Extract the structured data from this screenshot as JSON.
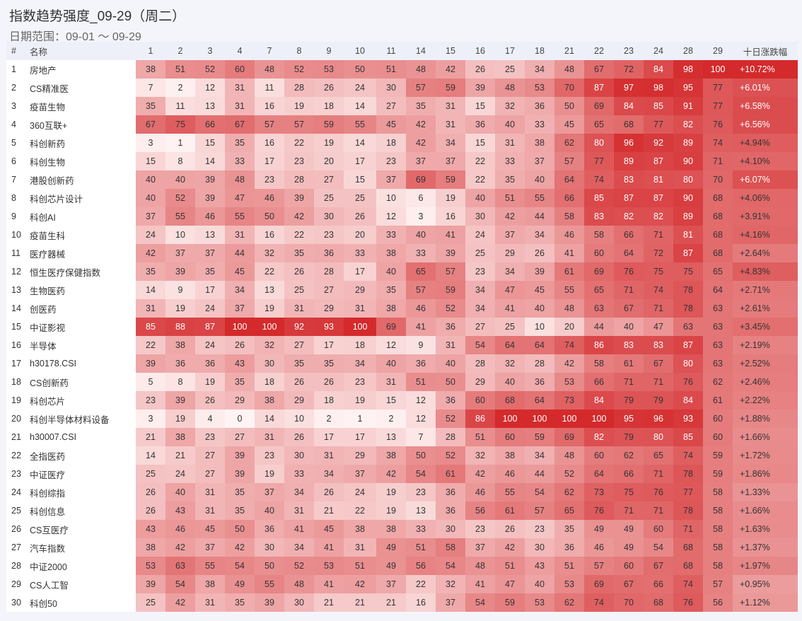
{
  "title": "指数趋势强度_09-29（周二）",
  "subtitle": "日期范围：09-01 ～ 09-29",
  "colors": {
    "heat_low": "#fff4f4",
    "heat_high": "#d42a2c",
    "header_bg": "#eef0f9",
    "page_bg": "#f4f5fb"
  },
  "chart_data": {
    "type": "heatmap",
    "columns": {
      "index": "#",
      "name": "名称",
      "change": "十日涨跌幅",
      "dates": [
        "1",
        "2",
        "3",
        "4",
        "7",
        "8",
        "9",
        "10",
        "11",
        "14",
        "15",
        "16",
        "17",
        "18",
        "21",
        "22",
        "23",
        "24",
        "28",
        "29"
      ]
    },
    "value_range": [
      0,
      100
    ],
    "rows": [
      {
        "idx": "1",
        "name": "房地产",
        "values": [
          38,
          51,
          52,
          60,
          48,
          52,
          53,
          50,
          51,
          48,
          42,
          26,
          25,
          34,
          48,
          67,
          72,
          84,
          98,
          100
        ],
        "change": "+10.72%"
      },
      {
        "idx": "2",
        "name": "CS精准医",
        "values": [
          7,
          2,
          12,
          31,
          11,
          28,
          26,
          24,
          30,
          57,
          59,
          39,
          48,
          53,
          70,
          87,
          97,
          98,
          95,
          77
        ],
        "change": "+6.01%"
      },
      {
        "idx": "3",
        "name": "疫苗生物",
        "values": [
          35,
          11,
          13,
          31,
          16,
          19,
          18,
          14,
          27,
          35,
          31,
          15,
          32,
          36,
          50,
          69,
          84,
          85,
          91,
          77
        ],
        "change": "+6.58%"
      },
      {
        "idx": "4",
        "name": "360互联+",
        "values": [
          67,
          75,
          66,
          67,
          57,
          57,
          59,
          55,
          45,
          42,
          31,
          36,
          40,
          33,
          45,
          65,
          68,
          77,
          82,
          76
        ],
        "change": "+6.56%"
      },
      {
        "idx": "5",
        "name": "科创新药",
        "values": [
          3,
          1,
          15,
          35,
          16,
          22,
          19,
          14,
          18,
          42,
          34,
          15,
          31,
          38,
          62,
          80,
          96,
          92,
          89,
          74
        ],
        "change": "+4.94%"
      },
      {
        "idx": "6",
        "name": "科创生物",
        "values": [
          15,
          8,
          14,
          33,
          17,
          23,
          20,
          17,
          23,
          37,
          37,
          22,
          33,
          37,
          57,
          77,
          89,
          87,
          90,
          71
        ],
        "change": "+4.10%"
      },
      {
        "idx": "7",
        "name": "港股创新药",
        "values": [
          40,
          40,
          39,
          48,
          23,
          28,
          27,
          15,
          37,
          69,
          59,
          22,
          35,
          40,
          64,
          74,
          83,
          81,
          80,
          70
        ],
        "change": "+6.07%"
      },
      {
        "idx": "8",
        "name": "科创芯片设计",
        "values": [
          40,
          52,
          39,
          47,
          46,
          39,
          25,
          25,
          10,
          6,
          19,
          40,
          51,
          55,
          66,
          85,
          87,
          87,
          90,
          68
        ],
        "change": "+4.06%"
      },
      {
        "idx": "9",
        "name": "科创AI",
        "values": [
          37,
          55,
          46,
          55,
          50,
          42,
          30,
          26,
          12,
          3,
          16,
          30,
          42,
          44,
          58,
          83,
          82,
          82,
          89,
          68
        ],
        "change": "+3.91%"
      },
      {
        "idx": "10",
        "name": "疫苗生科",
        "values": [
          24,
          10,
          13,
          31,
          16,
          22,
          23,
          20,
          33,
          40,
          41,
          24,
          37,
          34,
          46,
          58,
          66,
          71,
          81,
          68
        ],
        "change": "+4.16%"
      },
      {
        "idx": "11",
        "name": "医疗器械",
        "values": [
          42,
          37,
          37,
          44,
          32,
          35,
          36,
          33,
          38,
          33,
          39,
          25,
          29,
          26,
          41,
          60,
          64,
          72,
          87,
          68
        ],
        "change": "+2.64%"
      },
      {
        "idx": "12",
        "name": "恒生医疗保健指数",
        "values": [
          35,
          39,
          35,
          45,
          22,
          26,
          28,
          17,
          40,
          65,
          57,
          23,
          34,
          39,
          61,
          69,
          76,
          75,
          75,
          65
        ],
        "change": "+4.83%"
      },
      {
        "idx": "13",
        "name": "生物医药",
        "values": [
          14,
          9,
          17,
          34,
          13,
          25,
          27,
          29,
          35,
          57,
          59,
          34,
          47,
          45,
          55,
          65,
          71,
          74,
          78,
          64
        ],
        "change": "+2.71%"
      },
      {
        "idx": "14",
        "name": "创医药",
        "values": [
          31,
          19,
          24,
          37,
          19,
          31,
          29,
          31,
          38,
          46,
          52,
          34,
          41,
          40,
          48,
          63,
          67,
          71,
          78,
          63
        ],
        "change": "+2.61%"
      },
      {
        "idx": "15",
        "name": "中证影视",
        "values": [
          85,
          88,
          87,
          100,
          100,
          92,
          93,
          100,
          69,
          41,
          36,
          27,
          25,
          10,
          20,
          44,
          40,
          47,
          63,
          63
        ],
        "change": "+3.45%"
      },
      {
        "idx": "16",
        "name": "半导体",
        "values": [
          22,
          38,
          24,
          26,
          32,
          27,
          17,
          18,
          12,
          9,
          31,
          54,
          64,
          64,
          74,
          86,
          83,
          83,
          87,
          63
        ],
        "change": "+2.19%"
      },
      {
        "idx": "17",
        "name": "h30178.CSI",
        "values": [
          39,
          36,
          36,
          43,
          30,
          35,
          35,
          34,
          40,
          36,
          40,
          28,
          32,
          28,
          42,
          58,
          61,
          67,
          80,
          63
        ],
        "change": "+2.52%"
      },
      {
        "idx": "18",
        "name": "CS创新药",
        "values": [
          5,
          8,
          19,
          35,
          18,
          26,
          26,
          23,
          31,
          51,
          50,
          29,
          40,
          36,
          53,
          66,
          71,
          71,
          76,
          62
        ],
        "change": "+2.46%"
      },
      {
        "idx": "19",
        "name": "科创芯片",
        "values": [
          23,
          39,
          26,
          29,
          38,
          29,
          18,
          19,
          15,
          12,
          36,
          60,
          68,
          64,
          73,
          84,
          79,
          79,
          84,
          61
        ],
        "change": "+2.22%"
      },
      {
        "idx": "20",
        "name": "科创半导体材料设备",
        "values": [
          3,
          19,
          4,
          0,
          14,
          10,
          2,
          1,
          2,
          12,
          52,
          86,
          100,
          100,
          100,
          100,
          95,
          96,
          93,
          60
        ],
        "change": "+1.88%"
      },
      {
        "idx": "21",
        "name": "h30007.CSI",
        "values": [
          21,
          38,
          23,
          27,
          31,
          26,
          17,
          17,
          13,
          7,
          28,
          51,
          60,
          59,
          69,
          82,
          79,
          80,
          85,
          60
        ],
        "change": "+1.66%"
      },
      {
        "idx": "22",
        "name": "全指医药",
        "values": [
          14,
          21,
          27,
          39,
          23,
          30,
          31,
          29,
          38,
          50,
          52,
          32,
          38,
          34,
          48,
          60,
          62,
          65,
          74,
          59
        ],
        "change": "+1.72%"
      },
      {
        "idx": "23",
        "name": "中证医疗",
        "values": [
          25,
          24,
          27,
          39,
          19,
          33,
          34,
          37,
          42,
          54,
          61,
          42,
          46,
          44,
          52,
          64,
          66,
          71,
          78,
          59
        ],
        "change": "+1.86%"
      },
      {
        "idx": "24",
        "name": "科创综指",
        "values": [
          26,
          40,
          31,
          35,
          37,
          34,
          26,
          24,
          19,
          23,
          36,
          46,
          55,
          54,
          62,
          73,
          75,
          76,
          77,
          58
        ],
        "change": "+1.33%"
      },
      {
        "idx": "25",
        "name": "科创信息",
        "values": [
          26,
          43,
          31,
          35,
          40,
          31,
          21,
          22,
          19,
          13,
          36,
          56,
          61,
          57,
          65,
          76,
          71,
          71,
          78,
          58
        ],
        "change": "+1.66%"
      },
      {
        "idx": "26",
        "name": "CS互医疗",
        "values": [
          43,
          46,
          45,
          50,
          36,
          41,
          45,
          38,
          38,
          33,
          30,
          23,
          26,
          23,
          35,
          49,
          49,
          60,
          71,
          58
        ],
        "change": "+1.63%"
      },
      {
        "idx": "27",
        "name": "汽车指数",
        "values": [
          38,
          42,
          37,
          42,
          30,
          34,
          41,
          31,
          49,
          51,
          58,
          37,
          42,
          30,
          36,
          46,
          49,
          54,
          68,
          58
        ],
        "change": "+1.37%"
      },
      {
        "idx": "28",
        "name": "中证2000",
        "values": [
          53,
          63,
          55,
          54,
          50,
          52,
          53,
          51,
          49,
          56,
          54,
          48,
          51,
          43,
          51,
          57,
          60,
          67,
          68,
          58
        ],
        "change": "+1.97%"
      },
      {
        "idx": "29",
        "name": "CS人工智",
        "values": [
          39,
          54,
          38,
          49,
          55,
          48,
          41,
          42,
          37,
          22,
          32,
          41,
          47,
          40,
          53,
          69,
          67,
          66,
          74,
          57
        ],
        "change": "+0.95%"
      },
      {
        "idx": "30",
        "name": "科创50",
        "values": [
          25,
          42,
          31,
          35,
          39,
          30,
          21,
          21,
          21,
          16,
          37,
          54,
          59,
          53,
          62,
          74,
          70,
          68,
          76,
          56
        ],
        "change": "+1.12%"
      }
    ]
  }
}
